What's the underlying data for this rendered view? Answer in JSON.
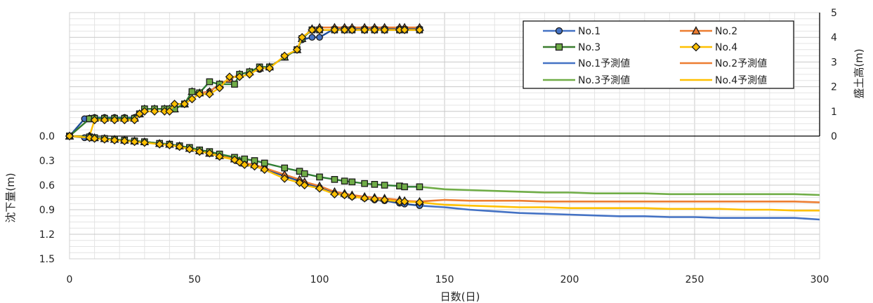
{
  "chart_data": {
    "type": "line",
    "xlabel": "日数(日)",
    "ylabel_left": "沈下量(m)",
    "ylabel_right": "盛土高(m)",
    "xlim": [
      0,
      300
    ],
    "x_ticks": [
      "0",
      "50",
      "100",
      "150",
      "200",
      "250",
      "300"
    ],
    "left_ticks": [
      "0.0",
      "0.3",
      "0.6",
      "0.9",
      "1.2",
      "1.5"
    ],
    "right_ticks": [
      "0",
      "1",
      "2",
      "3",
      "4",
      "5"
    ],
    "settlement_range": [
      0,
      1.5
    ],
    "fill_range": [
      0,
      5
    ],
    "grid": true,
    "legend_position": "top-right",
    "legend": [
      {
        "label": "No.1",
        "color": "#4472C4",
        "marker": "circle"
      },
      {
        "label": "No.2",
        "color": "#ED7D31",
        "marker": "triangle"
      },
      {
        "label": "No.3",
        "color": "#3A7D2E",
        "marker": "square"
      },
      {
        "label": "No.4",
        "color": "#FFC000",
        "marker": "diamond"
      },
      {
        "label": "No.1予測値",
        "color": "#4472C4",
        "marker": "none"
      },
      {
        "label": "No.2予測値",
        "color": "#ED7D31",
        "marker": "none"
      },
      {
        "label": "No.3予測値",
        "color": "#70AD47",
        "marker": "none"
      },
      {
        "label": "No.4予測値",
        "color": "#FFC000",
        "marker": "none"
      }
    ],
    "fill_height": [
      {
        "name": "No.1",
        "color": "#1F4E9A",
        "marker_fill": "#4472C4",
        "marker": "circle",
        "x": [
          0,
          6,
          8,
          10,
          14,
          18,
          22,
          26,
          28,
          30,
          34,
          38,
          40,
          42,
          46,
          49,
          52,
          56,
          60,
          64,
          68,
          72,
          76,
          80,
          86,
          91,
          93,
          97,
          100,
          106,
          110,
          113,
          118,
          122,
          126,
          132,
          134,
          140
        ],
        "y": [
          0,
          0.7,
          0.72,
          0.75,
          0.75,
          0.75,
          0.75,
          0.75,
          0.9,
          1.1,
          1.1,
          1.1,
          1.1,
          1.1,
          1.3,
          1.8,
          1.75,
          1.8,
          2.1,
          2.3,
          2.5,
          2.6,
          2.7,
          2.8,
          3.2,
          3.5,
          3.9,
          4.0,
          4.0,
          4.35,
          4.35,
          4.35,
          4.35,
          4.35,
          4.35,
          4.35,
          4.35,
          4.35
        ]
      },
      {
        "name": "No.2",
        "color": "#ED7D31",
        "marker_fill": "#ED7D31",
        "marker": "triangle",
        "x": [
          0,
          8,
          10,
          14,
          18,
          22,
          26,
          28,
          30,
          34,
          38,
          40,
          42,
          46,
          49,
          52,
          56,
          60,
          64,
          68,
          72,
          76,
          80,
          86,
          91,
          93,
          97,
          100,
          106,
          110,
          113,
          118,
          122,
          126,
          132,
          134,
          140
        ],
        "y": [
          0,
          0.7,
          0.72,
          0.72,
          0.72,
          0.72,
          0.72,
          0.9,
          1.1,
          1.1,
          1.1,
          1.1,
          1.1,
          1.3,
          1.8,
          1.75,
          1.8,
          2.1,
          2.3,
          2.5,
          2.6,
          2.75,
          2.8,
          3.2,
          3.5,
          3.95,
          4.35,
          4.4,
          4.4,
          4.4,
          4.4,
          4.4,
          4.4,
          4.4,
          4.4,
          4.4,
          4.4
        ]
      },
      {
        "name": "No.3",
        "color": "#2E7D32",
        "marker_fill": "#70AD47",
        "marker": "square",
        "x": [
          0,
          8,
          10,
          14,
          18,
          22,
          26,
          28,
          30,
          34,
          38,
          40,
          42,
          46,
          49,
          52,
          56,
          60,
          66,
          68,
          72,
          76,
          80,
          86,
          91,
          93,
          97,
          100,
          106,
          110,
          113,
          118,
          122,
          126,
          132,
          134,
          140
        ],
        "y": [
          0,
          0.7,
          0.72,
          0.72,
          0.72,
          0.72,
          0.72,
          0.9,
          1.1,
          1.1,
          1.1,
          1.1,
          1.1,
          1.3,
          1.8,
          1.75,
          2.2,
          2.1,
          2.1,
          2.5,
          2.6,
          2.8,
          2.8,
          3.2,
          3.5,
          3.95,
          4.3,
          4.3,
          4.3,
          4.3,
          4.3,
          4.3,
          4.3,
          4.3,
          4.3,
          4.3,
          4.3
        ]
      },
      {
        "name": "No.4",
        "color": "#FFC000",
        "marker_fill": "#FFC000",
        "marker": "diamond",
        "x": [
          0,
          8,
          10,
          14,
          18,
          22,
          26,
          28,
          30,
          34,
          38,
          40,
          42,
          46,
          49,
          52,
          56,
          60,
          64,
          68,
          72,
          76,
          80,
          86,
          91,
          93,
          97,
          100,
          106,
          110,
          113,
          118,
          122,
          126,
          132,
          134,
          140
        ],
        "y": [
          0,
          0,
          0.65,
          0.65,
          0.65,
          0.65,
          0.65,
          0.9,
          1.0,
          1.0,
          1.0,
          1.0,
          1.3,
          1.3,
          1.5,
          1.7,
          1.7,
          1.95,
          2.4,
          2.4,
          2.5,
          2.75,
          2.75,
          3.25,
          3.5,
          4.0,
          4.3,
          4.3,
          4.3,
          4.3,
          4.3,
          4.3,
          4.3,
          4.3,
          4.3,
          4.3,
          4.3
        ]
      }
    ],
    "settlement_measured": [
      {
        "name": "No.1",
        "color": "#1F4E9A",
        "marker_fill": "#4472C4",
        "marker": "circle",
        "x": [
          0,
          6,
          10,
          14,
          18,
          22,
          26,
          30,
          36,
          40,
          44,
          48,
          52,
          56,
          60,
          66,
          68,
          70,
          74,
          78,
          86,
          92,
          94,
          100,
          106,
          110,
          113,
          118,
          122,
          126,
          132,
          134,
          140
        ],
        "y": [
          0,
          0.02,
          0.02,
          0.03,
          0.04,
          0.05,
          0.06,
          0.07,
          0.09,
          0.1,
          0.12,
          0.15,
          0.18,
          0.21,
          0.24,
          0.28,
          0.31,
          0.34,
          0.36,
          0.4,
          0.49,
          0.55,
          0.58,
          0.63,
          0.7,
          0.72,
          0.74,
          0.76,
          0.78,
          0.79,
          0.82,
          0.83,
          0.85
        ]
      },
      {
        "name": "No.2",
        "color": "#ED7D31",
        "marker_fill": "#ED7D31",
        "marker": "triangle",
        "x": [
          0,
          8,
          10,
          14,
          18,
          22,
          26,
          30,
          36,
          40,
          44,
          48,
          52,
          56,
          60,
          66,
          68,
          70,
          74,
          78,
          86,
          92,
          94,
          100,
          106,
          110,
          113,
          118,
          122,
          126,
          132,
          134,
          140
        ],
        "y": [
          0,
          0.01,
          0.02,
          0.03,
          0.04,
          0.05,
          0.06,
          0.07,
          0.09,
          0.1,
          0.12,
          0.15,
          0.18,
          0.21,
          0.24,
          0.28,
          0.3,
          0.33,
          0.35,
          0.39,
          0.47,
          0.53,
          0.56,
          0.61,
          0.68,
          0.7,
          0.72,
          0.74,
          0.75,
          0.76,
          0.78,
          0.79,
          0.8
        ]
      },
      {
        "name": "No.3",
        "color": "#2E7D32",
        "marker_fill": "#70AD47",
        "marker": "square",
        "x": [
          0,
          8,
          10,
          14,
          18,
          22,
          26,
          30,
          36,
          40,
          44,
          48,
          52,
          56,
          60,
          66,
          70,
          74,
          78,
          86,
          92,
          94,
          100,
          106,
          110,
          113,
          118,
          122,
          126,
          132,
          134,
          140
        ],
        "y": [
          0,
          0.01,
          0.02,
          0.03,
          0.04,
          0.05,
          0.06,
          0.07,
          0.09,
          0.1,
          0.12,
          0.14,
          0.17,
          0.19,
          0.22,
          0.26,
          0.28,
          0.3,
          0.33,
          0.39,
          0.43,
          0.46,
          0.5,
          0.53,
          0.55,
          0.56,
          0.58,
          0.59,
          0.6,
          0.61,
          0.62,
          0.62
        ]
      },
      {
        "name": "No.4",
        "color": "#FFC000",
        "marker_fill": "#FFC000",
        "marker": "diamond",
        "x": [
          0,
          8,
          10,
          14,
          18,
          22,
          26,
          30,
          36,
          40,
          44,
          48,
          52,
          56,
          60,
          66,
          68,
          70,
          74,
          78,
          86,
          92,
          94,
          100,
          106,
          110,
          113,
          118,
          122,
          126,
          132,
          134,
          140
        ],
        "y": [
          0,
          0.02,
          0.03,
          0.04,
          0.05,
          0.06,
          0.07,
          0.08,
          0.1,
          0.11,
          0.13,
          0.16,
          0.19,
          0.21,
          0.25,
          0.29,
          0.32,
          0.35,
          0.37,
          0.41,
          0.52,
          0.57,
          0.6,
          0.64,
          0.71,
          0.72,
          0.74,
          0.76,
          0.77,
          0.78,
          0.8,
          0.8,
          0.81
        ]
      }
    ],
    "settlement_predicted": [
      {
        "name": "No.1予測値",
        "color": "#4472C4",
        "x": [
          140,
          150,
          160,
          170,
          180,
          190,
          200,
          210,
          220,
          230,
          240,
          250,
          260,
          270,
          280,
          290,
          300
        ],
        "y": [
          0.85,
          0.87,
          0.9,
          0.92,
          0.94,
          0.95,
          0.96,
          0.97,
          0.98,
          0.98,
          0.99,
          0.99,
          1.0,
          1.0,
          1.0,
          1.0,
          1.02
        ]
      },
      {
        "name": "No.2予測値",
        "color": "#ED7D31",
        "x": [
          140,
          150,
          160,
          170,
          180,
          190,
          200,
          210,
          220,
          230,
          240,
          250,
          260,
          270,
          280,
          290,
          300
        ],
        "y": [
          0.8,
          0.78,
          0.79,
          0.79,
          0.79,
          0.8,
          0.8,
          0.8,
          0.8,
          0.8,
          0.8,
          0.8,
          0.8,
          0.8,
          0.8,
          0.8,
          0.81
        ]
      },
      {
        "name": "No.3予測値",
        "color": "#70AD47",
        "x": [
          140,
          150,
          160,
          170,
          180,
          190,
          200,
          210,
          220,
          230,
          240,
          250,
          260,
          270,
          280,
          290,
          300
        ],
        "y": [
          0.62,
          0.65,
          0.66,
          0.67,
          0.68,
          0.69,
          0.69,
          0.7,
          0.7,
          0.7,
          0.71,
          0.71,
          0.71,
          0.71,
          0.71,
          0.71,
          0.72
        ]
      },
      {
        "name": "No.4予測値",
        "color": "#FFC000",
        "x": [
          140,
          150,
          160,
          170,
          180,
          190,
          200,
          210,
          220,
          230,
          240,
          250,
          260,
          270,
          280,
          290,
          300
        ],
        "y": [
          0.81,
          0.84,
          0.85,
          0.86,
          0.87,
          0.87,
          0.88,
          0.88,
          0.88,
          0.88,
          0.89,
          0.89,
          0.89,
          0.9,
          0.9,
          0.91,
          0.91
        ]
      }
    ]
  }
}
